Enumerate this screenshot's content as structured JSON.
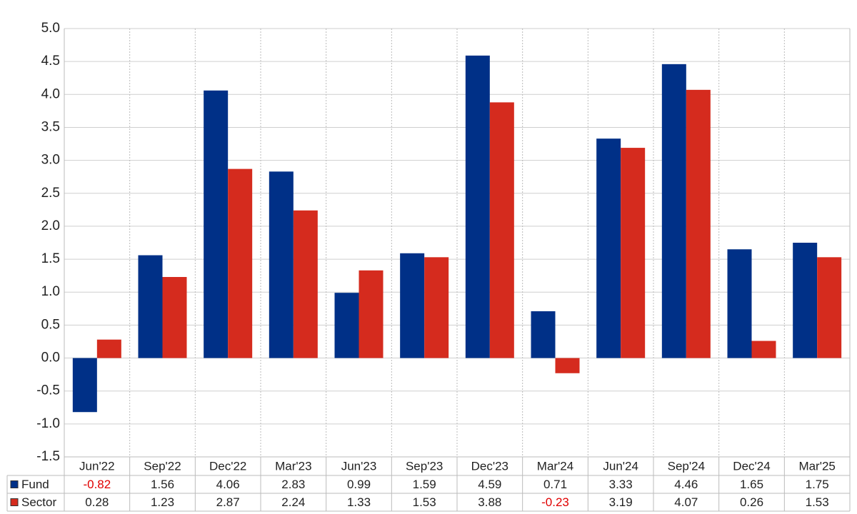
{
  "chart_data": {
    "type": "bar",
    "categories": [
      "Jun'22",
      "Sep'22",
      "Dec'22",
      "Mar'23",
      "Jun'23",
      "Sep'23",
      "Dec'23",
      "Mar'24",
      "Jun'24",
      "Sep'24",
      "Dec'24",
      "Mar'25"
    ],
    "series": [
      {
        "name": "Fund",
        "color": "#003087",
        "values": [
          -0.82,
          1.56,
          4.06,
          2.83,
          0.99,
          1.59,
          4.59,
          0.71,
          3.33,
          4.46,
          1.65,
          1.75
        ]
      },
      {
        "name": "Sector",
        "color": "#d52b1e",
        "values": [
          0.28,
          1.23,
          2.87,
          2.24,
          1.33,
          1.53,
          3.88,
          -0.23,
          3.19,
          4.07,
          0.26,
          1.53
        ]
      }
    ],
    "ylim": [
      -1.5,
      5.0
    ],
    "yticks": [
      {
        "value": -1.5,
        "label": "-1.5"
      },
      {
        "value": -1.0,
        "label": "-1.0"
      },
      {
        "value": -0.5,
        "label": "-0.5"
      },
      {
        "value": 0,
        "label": "0.0"
      },
      {
        "value": 0.5,
        "label": "0.5"
      },
      {
        "value": 1.0,
        "label": "1.0"
      },
      {
        "value": 1.5,
        "label": "1.5"
      },
      {
        "value": 2.0,
        "label": "2.0"
      },
      {
        "value": 2.5,
        "label": "2.5"
      },
      {
        "value": 3.0,
        "label": "3.0"
      },
      {
        "value": 3.5,
        "label": "3.5"
      },
      {
        "value": 4.0,
        "label": "4.0"
      },
      {
        "value": 4.5,
        "label": "4.5"
      },
      {
        "value": 5.0,
        "label": "5.0"
      }
    ],
    "grid": true,
    "negative_color": "#e00000"
  }
}
